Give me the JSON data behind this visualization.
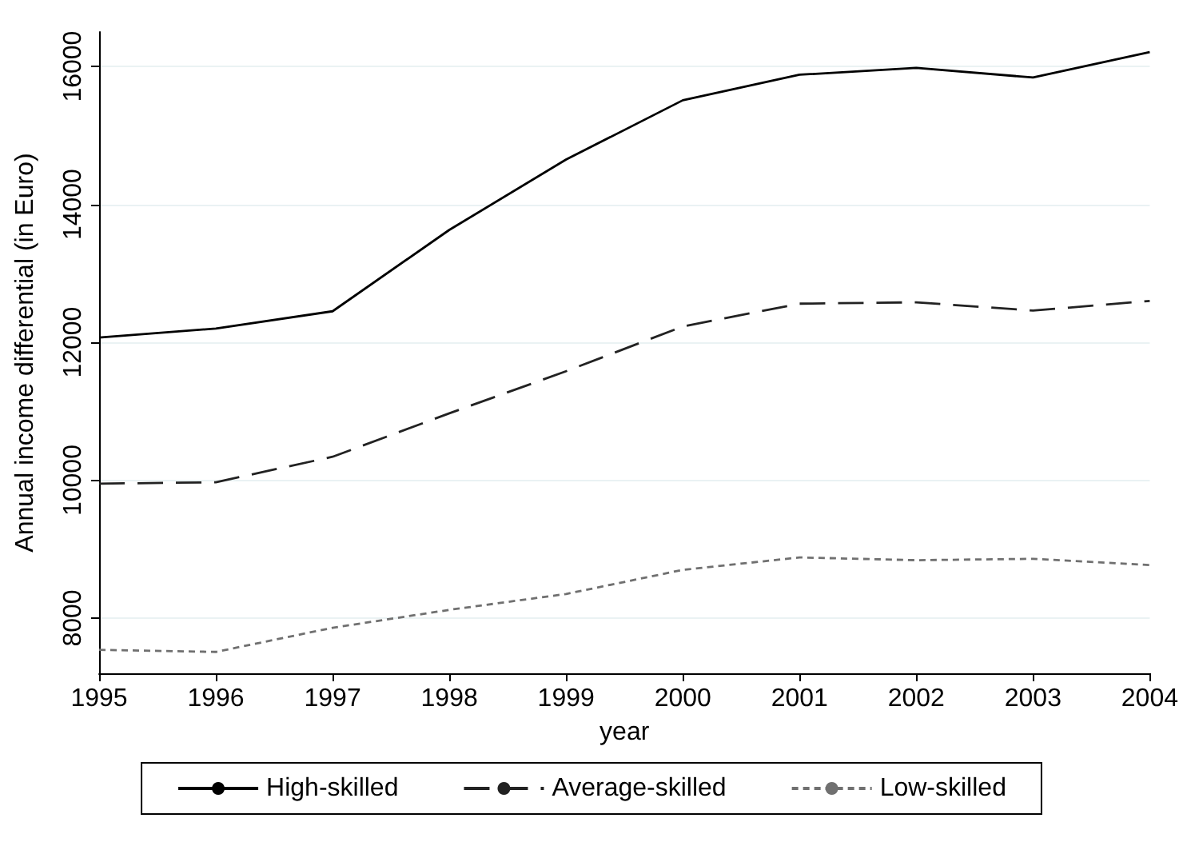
{
  "chart_data": {
    "type": "line",
    "xlabel": "year",
    "ylabel": "Annual income differential (in Euro)",
    "x": [
      1995,
      1996,
      1997,
      1998,
      1999,
      2000,
      2001,
      2002,
      2003,
      2004
    ],
    "xlim": [
      1995,
      2004
    ],
    "xticks": [
      1995,
      1996,
      1997,
      1998,
      1999,
      2000,
      2001,
      2002,
      2003,
      2004
    ],
    "ylim": [
      7200,
      16500
    ],
    "yticks": [
      8000,
      10000,
      12000,
      14000,
      16000
    ],
    "grid": "y",
    "legend": "bottom",
    "marker": "none",
    "series": [
      {
        "name": "High-skilled",
        "color": "#000000",
        "line_style": "solid",
        "values": [
          12070,
          12200,
          12450,
          13630,
          14650,
          15510,
          15880,
          15980,
          15840,
          16210
        ]
      },
      {
        "name": "Average-skilled",
        "color": "#222222",
        "line_style": "dashed",
        "values": [
          9950,
          9970,
          10340,
          10970,
          11580,
          12230,
          12560,
          12580,
          12460,
          12600
        ]
      },
      {
        "name": "Low-skilled",
        "color": "#707070",
        "line_style": "dotted",
        "values": [
          7540,
          7510,
          7860,
          8120,
          8350,
          8700,
          8880,
          8840,
          8860,
          8770
        ]
      }
    ]
  }
}
